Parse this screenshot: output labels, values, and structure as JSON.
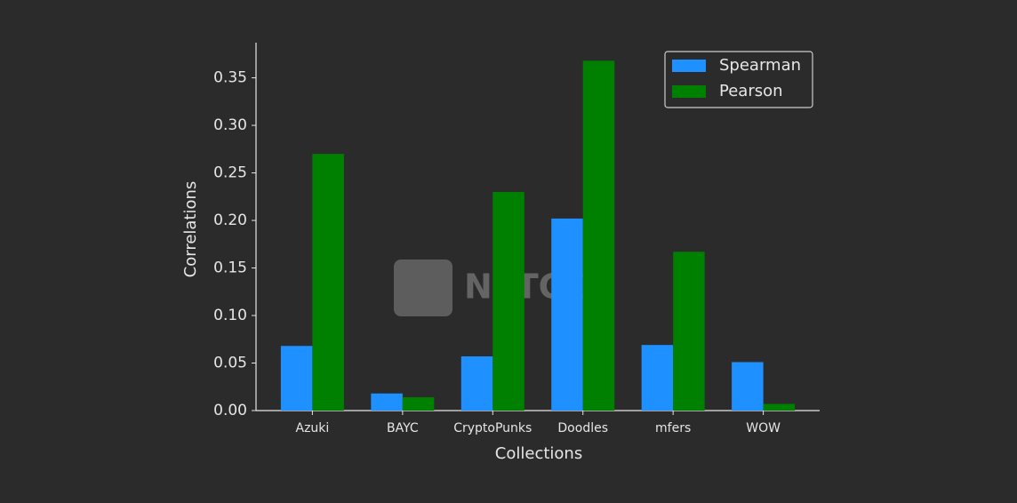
{
  "chart_data": {
    "type": "bar",
    "x_label": "Collections",
    "y_label": "Correlations",
    "watermark": "NFTGO",
    "categories": [
      "Azuki",
      "BAYC",
      "CryptoPunks",
      "Doodles",
      "mfers",
      "WOW"
    ],
    "series": [
      {
        "name": "Spearman",
        "color": "#1e90ff",
        "values": [
          0.068,
          0.018,
          0.057,
          0.202,
          0.069,
          0.051
        ]
      },
      {
        "name": "Pearson",
        "color": "#008000",
        "values": [
          0.27,
          0.014,
          0.23,
          0.368,
          0.167,
          0.007
        ]
      }
    ],
    "ylim": [
      0,
      0.387
    ],
    "yticks": [
      {
        "value": 0,
        "label": "0.00"
      },
      {
        "value": 0.05,
        "label": "0.05"
      },
      {
        "value": 0.1,
        "label": "0.10"
      },
      {
        "value": 0.15,
        "label": "0.15"
      },
      {
        "value": 0.2,
        "label": "0.20"
      },
      {
        "value": 0.25,
        "label": "0.25"
      },
      {
        "value": 0.3,
        "label": "0.30"
      },
      {
        "value": 0.35,
        "label": "0.35"
      }
    ],
    "legend": "upper right",
    "grid": false
  }
}
